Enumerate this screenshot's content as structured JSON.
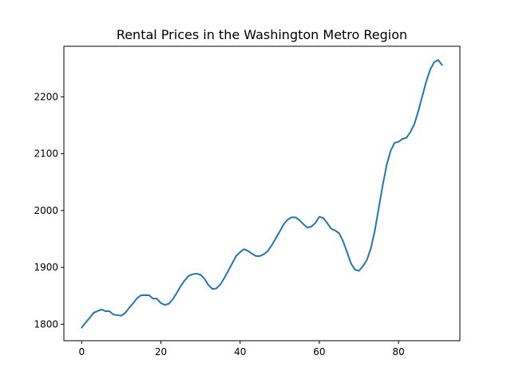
{
  "chart_data": {
    "type": "line",
    "title": "Rental Prices in the Washington Metro Region",
    "xlabel": "",
    "ylabel": "",
    "xlim": [
      -4.5,
      95.5
    ],
    "ylim": [
      1771,
      2289
    ],
    "xticks": [
      0,
      20,
      40,
      60,
      80
    ],
    "yticks": [
      1800,
      1900,
      2000,
      2100,
      2200
    ],
    "grid": false,
    "legend": "none",
    "series": [
      {
        "color": "#1f77b4",
        "x": [
          0,
          1,
          2,
          3,
          4,
          5,
          6,
          7,
          8,
          9,
          10,
          11,
          12,
          13,
          14,
          15,
          16,
          17,
          18,
          19,
          20,
          21,
          22,
          23,
          24,
          25,
          26,
          27,
          28,
          29,
          30,
          31,
          32,
          33,
          34,
          35,
          36,
          37,
          38,
          39,
          40,
          41,
          42,
          43,
          44,
          45,
          46,
          47,
          48,
          49,
          50,
          51,
          52,
          53,
          54,
          55,
          56,
          57,
          58,
          59,
          60,
          61,
          62,
          63,
          64,
          65,
          66,
          67,
          68,
          69,
          70,
          71,
          72,
          73,
          74,
          75,
          76,
          77,
          78,
          79,
          80,
          81,
          82,
          83,
          84,
          85,
          86,
          87,
          88,
          89,
          90,
          91
        ],
        "values": [
          1794,
          1803,
          1811,
          1820,
          1823,
          1826,
          1823,
          1823,
          1817,
          1816,
          1815,
          1820,
          1829,
          1837,
          1846,
          1851,
          1851,
          1851,
          1845,
          1845,
          1837,
          1834,
          1836,
          1844,
          1855,
          1867,
          1877,
          1885,
          1888,
          1889,
          1887,
          1880,
          1869,
          1862,
          1863,
          1870,
          1881,
          1894,
          1907,
          1920,
          1927,
          1932,
          1929,
          1924,
          1920,
          1920,
          1923,
          1929,
          1939,
          1951,
          1963,
          1976,
          1984,
          1988,
          1988,
          1983,
          1976,
          1970,
          1972,
          1978,
          1989,
          1987,
          1978,
          1968,
          1965,
          1960,
          1946,
          1927,
          1907,
          1896,
          1894,
          1902,
          1913,
          1933,
          1964,
          2004,
          2044,
          2080,
          2105,
          2119,
          2121,
          2126,
          2128,
          2138,
          2152,
          2175,
          2201,
          2227,
          2248,
          2261,
          2265,
          2256
        ]
      }
    ]
  }
}
